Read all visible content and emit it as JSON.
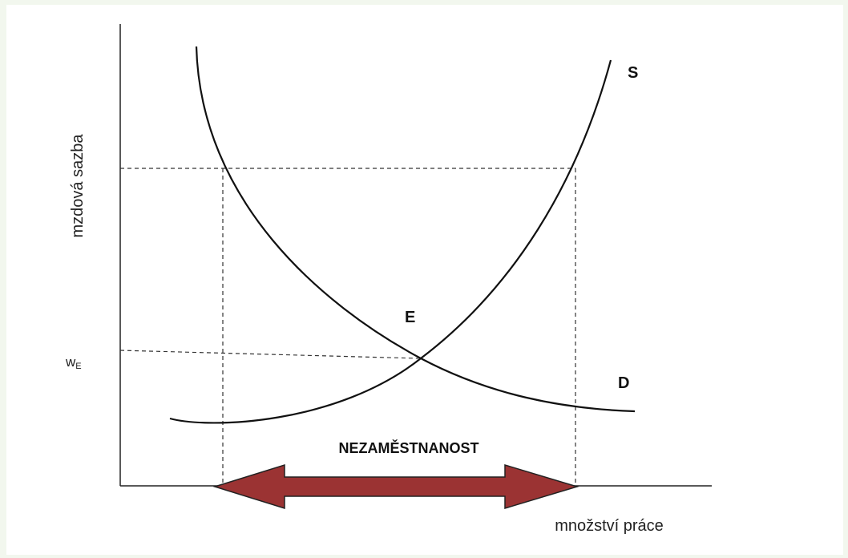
{
  "axes": {
    "y_label": "mzdová sazba",
    "x_label": "množství práce"
  },
  "curves": {
    "supply": "S",
    "demand": "D"
  },
  "equilibrium": "E",
  "wage": {
    "symbol": "w",
    "subscript": "E"
  },
  "gap_label": "NEZAMĚSTNANOST"
}
